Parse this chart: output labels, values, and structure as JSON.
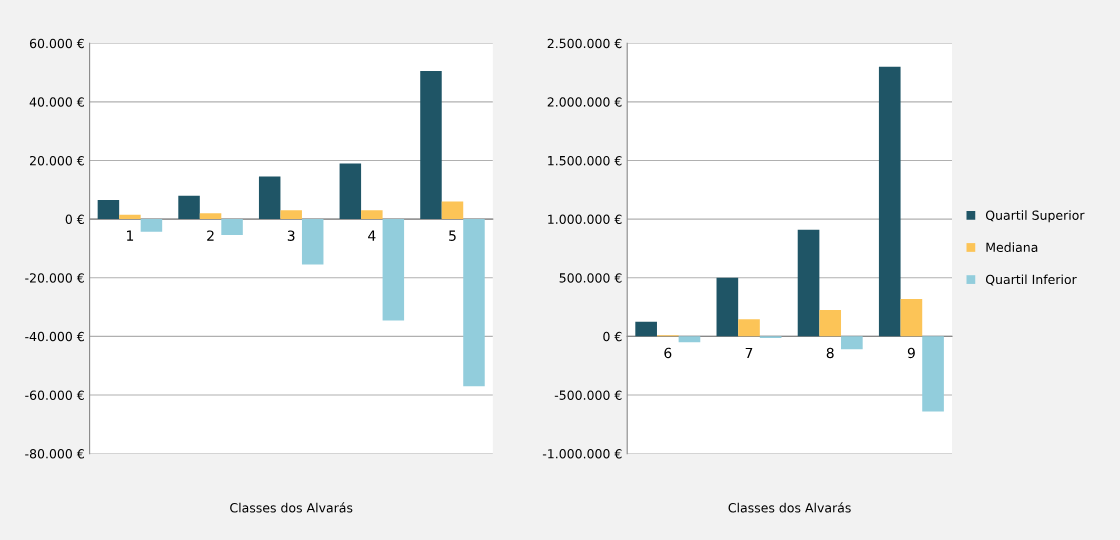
{
  "chart_data": [
    {
      "type": "bar",
      "xlabel": "Classes dos Alvarás",
      "categories": [
        "1",
        "2",
        "3",
        "4",
        "5"
      ],
      "series": [
        {
          "color": "#1f5566",
          "values": [
            6500,
            8000,
            14500,
            19000,
            50500
          ]
        },
        {
          "color": "#fcc457",
          "values": [
            1500,
            2000,
            3000,
            3000,
            6000
          ]
        },
        {
          "color": "#92cddc",
          "values": [
            -4300,
            -5400,
            -15500,
            -34600,
            -57000
          ]
        }
      ],
      "ylim": [
        -80000,
        60000
      ],
      "yticks": [
        {
          "value": -80000,
          "label": "-80.000 €"
        },
        {
          "value": -60000,
          "label": "-60.000 €"
        },
        {
          "value": -40000,
          "label": "-40.000 €"
        },
        {
          "value": -20000,
          "label": "-20.000 €"
        },
        {
          "value": 0,
          "label": "0 €"
        },
        {
          "value": 20000,
          "label": "20.000 €"
        },
        {
          "value": 40000,
          "label": "40.000 €"
        },
        {
          "value": 60000,
          "label": "60.000 €"
        }
      ],
      "grid": "y"
    },
    {
      "type": "bar",
      "xlabel": "Classes dos Alvarás",
      "categories": [
        "6",
        "7",
        "8",
        "9"
      ],
      "series": [
        {
          "name": "Quartil Superior",
          "color": "#1f5566",
          "values": [
            125000,
            500000,
            910000,
            2300000
          ]
        },
        {
          "name": "Mediana",
          "color": "#fcc457",
          "values": [
            10000,
            145000,
            225000,
            318000
          ]
        },
        {
          "name": "Quartil Inferior",
          "color": "#92cddc",
          "values": [
            -50000,
            -15000,
            -110000,
            -640000
          ]
        }
      ],
      "ylim": [
        -1000000,
        2500000
      ],
      "yticks": [
        {
          "value": -1000000,
          "label": "-1.000.000 €"
        },
        {
          "value": -500000,
          "label": "-500.000 €"
        },
        {
          "value": 0,
          "label": "0 €"
        },
        {
          "value": 500000,
          "label": "500.000 €"
        },
        {
          "value": 1000000,
          "label": "1.000.000 €"
        },
        {
          "value": 1500000,
          "label": "1.500.000 €"
        },
        {
          "value": 2000000,
          "label": "2.000.000 €"
        },
        {
          "value": 2500000,
          "label": "2.500.000 €"
        }
      ],
      "grid": "y",
      "legend": "right"
    }
  ]
}
